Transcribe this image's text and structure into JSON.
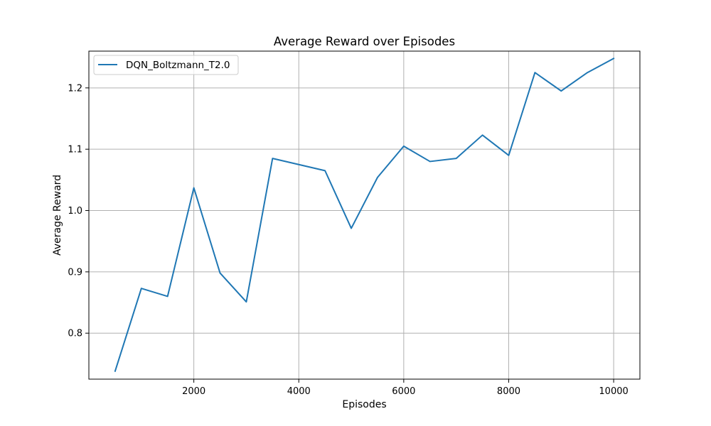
{
  "chart_data": {
    "type": "line",
    "title": "Average Reward over Episodes",
    "xlabel": "Episodes",
    "ylabel": "Average Reward",
    "xlim": [
      0,
      10500
    ],
    "ylim": [
      0.725,
      1.26
    ],
    "xticks": [
      2000,
      4000,
      6000,
      8000,
      10000
    ],
    "xtick_labels": [
      "2000",
      "4000",
      "6000",
      "8000",
      "10000"
    ],
    "yticks": [
      0.8,
      0.9,
      1.0,
      1.1,
      1.2
    ],
    "ytick_labels": [
      "0.8",
      "0.9",
      "1.0",
      "1.1",
      "1.2"
    ],
    "grid": true,
    "legend_position": "top-left",
    "series": [
      {
        "name": "DQN_Boltzmann_T2.0",
        "color": "#1f77b4",
        "x": [
          500,
          1000,
          1500,
          2000,
          2500,
          3000,
          3500,
          4000,
          4500,
          5000,
          5500,
          6000,
          6500,
          7000,
          7500,
          8000,
          8500,
          9000,
          9500,
          10000
        ],
        "y": [
          0.738,
          0.873,
          0.86,
          1.037,
          0.898,
          0.851,
          1.085,
          1.075,
          1.065,
          0.971,
          1.054,
          1.105,
          1.08,
          1.085,
          1.123,
          1.09,
          1.225,
          1.195,
          1.225,
          1.248
        ]
      }
    ]
  }
}
